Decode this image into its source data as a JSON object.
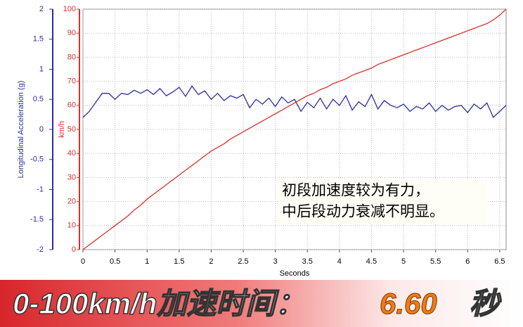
{
  "chart_data": {
    "type": "line",
    "ylabel": "Longitudinal Acceleration (g)",
    "y2label": "km/h",
    "xlabel": "Seconds",
    "annotation": [
      "初段加速度较为有力，",
      "中后段动力衰减不明显。"
    ],
    "x": [
      0,
      0.1,
      0.2,
      0.3,
      0.4,
      0.5,
      0.6,
      0.7,
      0.8,
      0.9,
      1,
      1.1,
      1.2,
      1.3,
      1.4,
      1.5,
      1.6,
      1.7,
      1.8,
      1.9,
      2,
      2.1,
      2.2,
      2.3,
      2.4,
      2.5,
      2.6,
      2.7,
      2.8,
      2.9,
      3,
      3.1,
      3.2,
      3.3,
      3.4,
      3.5,
      3.6,
      3.7,
      3.8,
      3.9,
      4,
      4.1,
      4.2,
      4.3,
      4.4,
      4.5,
      4.6,
      4.7,
      4.8,
      4.9,
      5,
      5.1,
      5.2,
      5.3,
      5.4,
      5.5,
      5.6,
      5.7,
      5.8,
      5.9,
      6,
      6.1,
      6.2,
      6.3,
      6.4,
      6.5,
      6.6
    ],
    "series": [
      {
        "color": "#2b2f9e",
        "axis": "y",
        "values": [
          0.2,
          0.3,
          0.45,
          0.6,
          0.6,
          0.5,
          0.6,
          0.58,
          0.65,
          0.6,
          0.66,
          0.58,
          0.68,
          0.56,
          0.62,
          0.7,
          0.55,
          0.72,
          0.58,
          0.64,
          0.5,
          0.6,
          0.48,
          0.56,
          0.52,
          0.58,
          0.36,
          0.5,
          0.42,
          0.52,
          0.38,
          0.54,
          0.44,
          0.5,
          0.3,
          0.45,
          0.36,
          0.52,
          0.34,
          0.5,
          0.4,
          0.56,
          0.32,
          0.46,
          0.38,
          0.58,
          0.34,
          0.48,
          0.4,
          0.36,
          0.42,
          0.3,
          0.38,
          0.34,
          0.44,
          0.3,
          0.4,
          0.32,
          0.38,
          0.4,
          0.28,
          0.42,
          0.34,
          0.44,
          0.2,
          0.3,
          0.4
        ]
      },
      {
        "color": "#d9302c",
        "axis": "y2",
        "values": [
          0,
          2,
          4,
          6,
          8,
          10,
          12,
          14,
          16.5,
          18.5,
          21,
          23,
          25,
          27,
          29,
          31,
          33,
          35,
          37,
          39,
          41,
          42.5,
          44,
          46,
          47.5,
          49,
          50.5,
          52,
          53.5,
          55,
          56.5,
          58,
          59.5,
          61,
          62.5,
          64,
          65,
          66.5,
          67.5,
          69,
          70,
          71,
          72.5,
          73.5,
          74.5,
          75.5,
          77,
          78,
          79,
          80,
          81,
          82,
          83,
          84,
          85,
          86,
          87,
          88,
          89,
          90,
          91,
          92,
          93,
          94,
          95.5,
          97.5,
          100
        ]
      }
    ],
    "xlim": [
      0,
      6.6
    ],
    "xticks": [
      0,
      0.5,
      1,
      1.5,
      2,
      2.5,
      3,
      3.5,
      4,
      4.5,
      5,
      5.5,
      6,
      6.5
    ],
    "ylim": [
      -2,
      2
    ],
    "yticks": [
      -2,
      -1.5,
      -1,
      -0.5,
      0,
      0.5,
      1,
      1.5,
      2
    ],
    "y2lim": [
      0,
      100
    ],
    "y2ticks": [
      0,
      10,
      20,
      30,
      40,
      50,
      60,
      70,
      80,
      90,
      100
    ],
    "grid": true
  },
  "banner": {
    "label": "0-100km/h加速时间：",
    "value": "6.60",
    "unit": "秒"
  }
}
